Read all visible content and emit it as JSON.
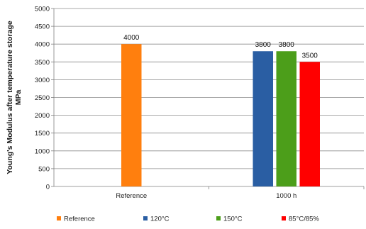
{
  "chart_data": {
    "type": "bar",
    "title": "",
    "ylabel_lines": [
      "Young's Modulus after temperature storage",
      "MPa"
    ],
    "xlabel": "",
    "ylim": [
      0,
      5000
    ],
    "ytick_step": 500,
    "grid": true,
    "legend_position": "bottom",
    "categories": [
      "Reference",
      "1000 h"
    ],
    "series": [
      {
        "name": "Reference",
        "color": "#ff7f0e",
        "values": [
          4000,
          null
        ]
      },
      {
        "name": "120°C",
        "color": "#2a5ea3",
        "values": [
          null,
          3800
        ]
      },
      {
        "name": "150°C",
        "color": "#4c9e1a",
        "values": [
          null,
          3800
        ]
      },
      {
        "name": "85°C/85%",
        "color": "#ff0000",
        "values": [
          null,
          3500
        ]
      }
    ]
  }
}
